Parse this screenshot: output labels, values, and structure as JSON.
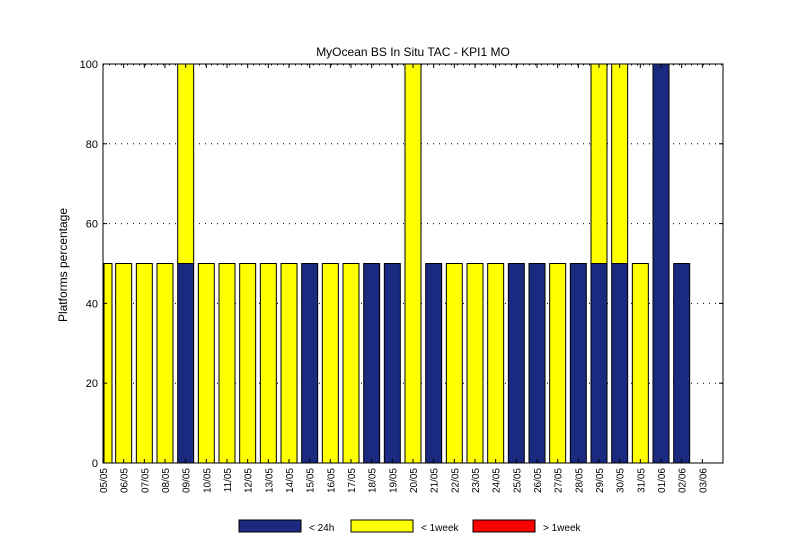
{
  "chart_data": {
    "type": "bar",
    "stacked": true,
    "title": "MyOcean  BS In Situ TAC - KPI1  MO",
    "xlabel": "",
    "ylabel": "Platforms percentage",
    "ylim": [
      0,
      100
    ],
    "yticks": [
      0,
      20,
      40,
      60,
      80,
      100
    ],
    "grid": "horizontal dotted",
    "legend_position": "bottom",
    "categories": [
      "05/05",
      "06/05",
      "07/05",
      "08/05",
      "09/05",
      "10/05",
      "11/05",
      "12/05",
      "13/05",
      "14/05",
      "15/05",
      "16/05",
      "17/05",
      "18/05",
      "19/05",
      "20/05",
      "21/05",
      "22/05",
      "23/05",
      "24/05",
      "25/05",
      "26/05",
      "27/05",
      "28/05",
      "29/05",
      "30/05",
      "31/05",
      "01/06",
      "02/06",
      "03/06"
    ],
    "series": [
      {
        "name": "< 24h",
        "color": "#1a2a80",
        "values": [
          0,
          0,
          0,
          0,
          50,
          0,
          0,
          0,
          0,
          0,
          50,
          0,
          0,
          50,
          50,
          0,
          50,
          0,
          0,
          0,
          50,
          50,
          0,
          50,
          50,
          50,
          0,
          100,
          50,
          0
        ]
      },
      {
        "name": "< 1week",
        "color": "#ffff00",
        "values": [
          50,
          50,
          50,
          50,
          50,
          50,
          50,
          50,
          50,
          50,
          0,
          50,
          50,
          0,
          0,
          100,
          0,
          50,
          50,
          50,
          0,
          0,
          50,
          0,
          50,
          50,
          50,
          0,
          0,
          0
        ]
      },
      {
        "name": "> 1week",
        "color": "#ff0000",
        "values": [
          0,
          0,
          0,
          0,
          0,
          0,
          0,
          0,
          0,
          0,
          0,
          0,
          0,
          0,
          0,
          0,
          0,
          0,
          0,
          0,
          0,
          0,
          0,
          0,
          0,
          0,
          0,
          0,
          0,
          0
        ]
      }
    ]
  }
}
